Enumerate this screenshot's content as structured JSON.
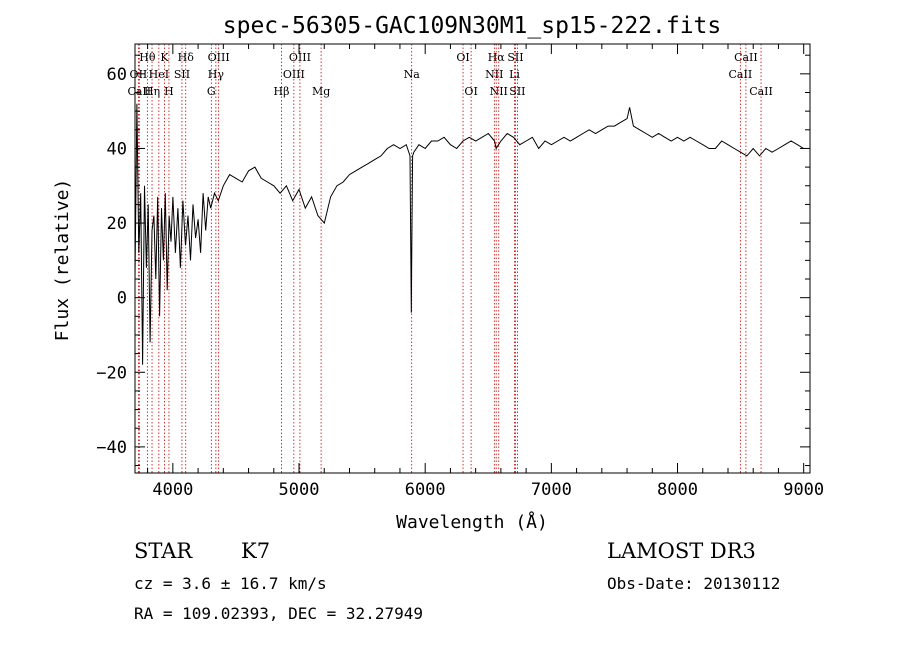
{
  "chart_data": {
    "type": "line",
    "title": "spec-56305-GAC109N30M1_sp15-222.fits",
    "xlabel": "Wavelength (Å)",
    "ylabel": "Flux (relative)",
    "xlim": [
      3700,
      9050
    ],
    "ylim": [
      -47,
      68
    ],
    "xticks": [
      4000,
      5000,
      6000,
      7000,
      8000,
      9000
    ],
    "xtick_labels": [
      "4000",
      "5000",
      "6000",
      "7000",
      "8000",
      "9000"
    ],
    "yticks": [
      -40,
      -20,
      0,
      20,
      40,
      60
    ],
    "ytick_labels": [
      "−40",
      "−20",
      "0",
      "20",
      "40",
      "60"
    ],
    "series": [
      {
        "name": "flux",
        "x": [
          3700,
          3715,
          3730,
          3745,
          3760,
          3775,
          3790,
          3805,
          3820,
          3835,
          3850,
          3865,
          3880,
          3895,
          3910,
          3925,
          3940,
          3955,
          3970,
          3985,
          4000,
          4020,
          4040,
          4060,
          4080,
          4100,
          4120,
          4140,
          4160,
          4180,
          4200,
          4220,
          4240,
          4260,
          4280,
          4300,
          4330,
          4360,
          4400,
          4450,
          4500,
          4550,
          4600,
          4650,
          4700,
          4750,
          4800,
          4850,
          4900,
          4950,
          5000,
          5050,
          5100,
          5150,
          5200,
          5250,
          5300,
          5350,
          5400,
          5450,
          5500,
          5550,
          5600,
          5650,
          5700,
          5750,
          5800,
          5850,
          5880,
          5890,
          5895,
          5900,
          5910,
          5950,
          6000,
          6050,
          6100,
          6150,
          6200,
          6250,
          6300,
          6350,
          6400,
          6450,
          6500,
          6550,
          6562,
          6600,
          6650,
          6700,
          6750,
          6800,
          6850,
          6900,
          6950,
          7000,
          7050,
          7100,
          7150,
          7200,
          7250,
          7300,
          7350,
          7400,
          7450,
          7500,
          7550,
          7600,
          7620,
          7650,
          7700,
          7750,
          7800,
          7850,
          7900,
          7950,
          8000,
          8050,
          8100,
          8150,
          8200,
          8250,
          8300,
          8350,
          8400,
          8450,
          8500,
          8550,
          8600,
          8650,
          8700,
          8750,
          8800,
          8850,
          8900,
          8950,
          9000
        ],
        "y": [
          5,
          52,
          12,
          28,
          -18,
          30,
          8,
          25,
          -12,
          18,
          22,
          5,
          27,
          -5,
          24,
          10,
          28,
          2,
          22,
          15,
          27,
          12,
          24,
          8,
          26,
          14,
          22,
          10,
          25,
          16,
          21,
          12,
          28,
          18,
          27,
          24,
          28,
          26,
          30,
          33,
          32,
          31,
          34,
          35,
          32,
          31,
          30,
          28,
          30,
          26,
          29,
          24,
          27,
          22,
          20,
          27,
          30,
          31,
          33,
          34,
          35,
          36,
          37,
          38,
          40,
          41,
          40,
          41,
          38,
          -4,
          17,
          38,
          39,
          41,
          40,
          42,
          42,
          43,
          41,
          40,
          42,
          43,
          42,
          43,
          44,
          42,
          40,
          42,
          44,
          43,
          41,
          42,
          43,
          40,
          42,
          41,
          42,
          43,
          42,
          43,
          44,
          45,
          44,
          45,
          46,
          46,
          47,
          48,
          51,
          46,
          45,
          44,
          43,
          44,
          43,
          42,
          43,
          42,
          43,
          42,
          41,
          40,
          40,
          42,
          41,
          40,
          39,
          38,
          40,
          38,
          40,
          39,
          40,
          41,
          42,
          41,
          40
        ]
      }
    ],
    "lines": [
      {
        "name": "Hθ",
        "x": 3798,
        "row": 1
      },
      {
        "name": "OII",
        "x": 3727,
        "row": 2
      },
      {
        "name": "CaII",
        "x": 3734,
        "row": 3
      },
      {
        "name": "Hη",
        "x": 3835,
        "row": 3
      },
      {
        "name": "HeI",
        "x": 3889,
        "row": 2
      },
      {
        "name": "K",
        "x": 3934,
        "row": 1
      },
      {
        "name": "H",
        "x": 3969,
        "row": 3
      },
      {
        "name": "SII",
        "x": 4072,
        "row": 2
      },
      {
        "name": "Hδ",
        "x": 4102,
        "row": 1
      },
      {
        "name": "OIII",
        "x": 4363,
        "row": 1
      },
      {
        "name": "Hγ",
        "x": 4341,
        "row": 2
      },
      {
        "name": "G",
        "x": 4305,
        "row": 3
      },
      {
        "name": "Hβ",
        "x": 4861,
        "row": 3
      },
      {
        "name": "OIII",
        "x": 5007,
        "row": 1
      },
      {
        "name": "OIII",
        "x": 4959,
        "row": 2
      },
      {
        "name": "Mg",
        "x": 5175,
        "row": 3
      },
      {
        "name": "Na",
        "x": 5893,
        "row": 2
      },
      {
        "name": "OI",
        "x": 6300,
        "row": 1
      },
      {
        "name": "OI",
        "x": 6364,
        "row": 3
      },
      {
        "name": "Hα",
        "x": 6563,
        "row": 1
      },
      {
        "name": "NII",
        "x": 6548,
        "row": 2
      },
      {
        "name": "NII",
        "x": 6583,
        "row": 3
      },
      {
        "name": "SII",
        "x": 6716,
        "row": 1
      },
      {
        "name": "Li",
        "x": 6708,
        "row": 2
      },
      {
        "name": "SII",
        "x": 6731,
        "row": 3
      },
      {
        "name": "CaII",
        "x": 8542,
        "row": 1
      },
      {
        "name": "CaII",
        "x": 8498,
        "row": 2
      },
      {
        "name": "CaII",
        "x": 8662,
        "row": 3
      }
    ]
  },
  "info": {
    "class": "STAR",
    "subclass": "K7",
    "cz": "cz = 3.6 ± 16.7 km/s",
    "coords": "RA = 109.02393, DEC =  32.27949",
    "survey": "LAMOST DR3",
    "obs_date": "Obs-Date: 20130112"
  },
  "colors": {
    "line_marker": "#cc0000",
    "spectrum": "#000000"
  }
}
